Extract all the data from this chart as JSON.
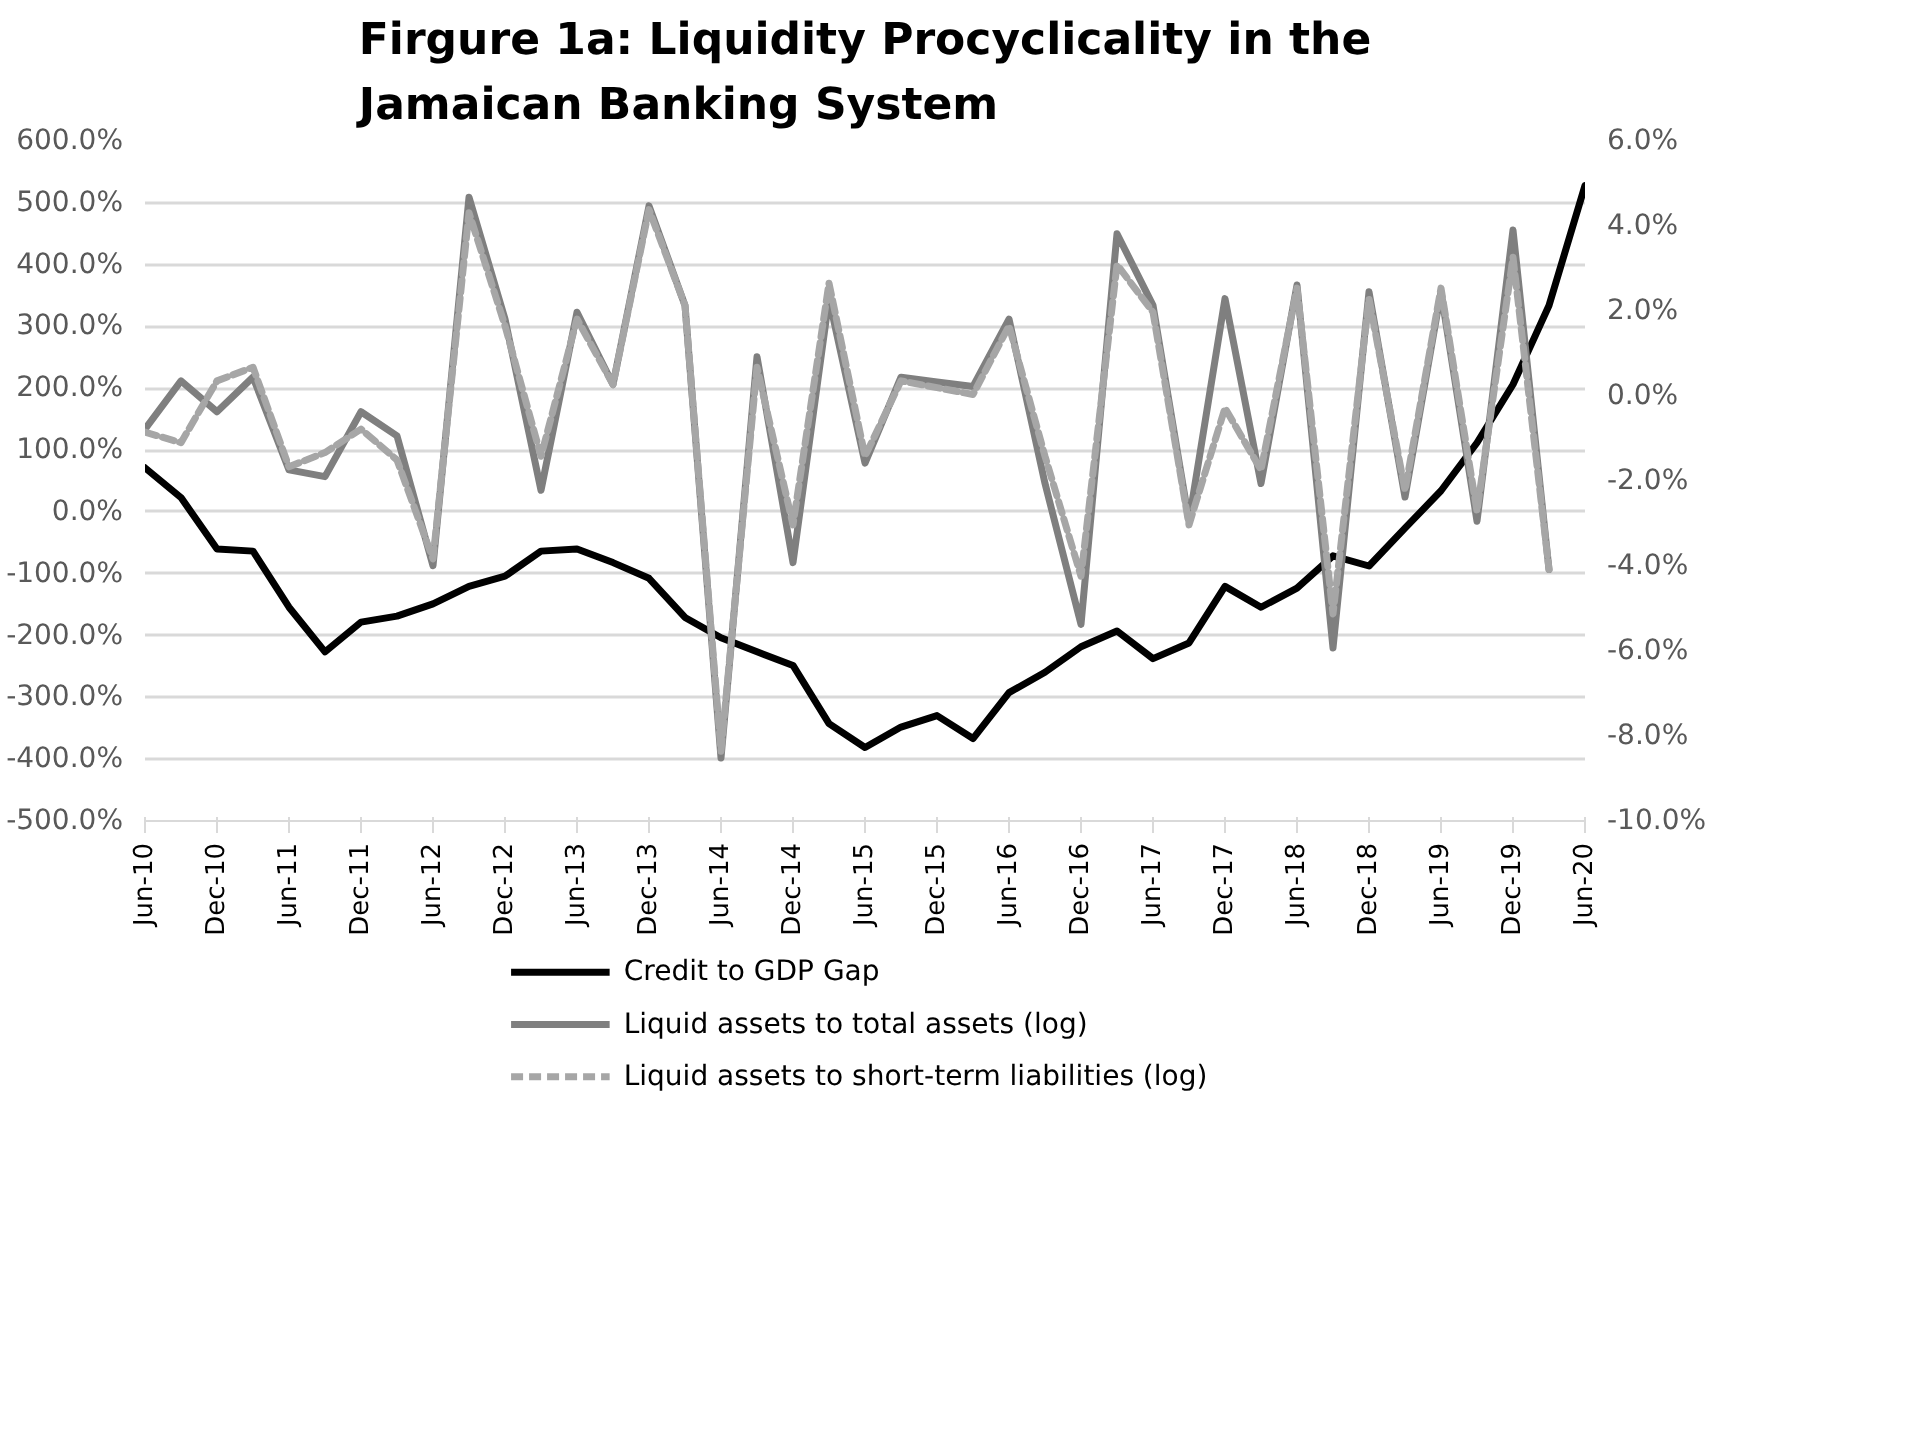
{
  "chart_data": {
    "type": "line",
    "title": "Firgure 1a: Liquidity Procyclicality in the Jamaican Banking System",
    "categories": [
      "Jun-10",
      null,
      "Dec-10",
      null,
      "Jun-11",
      null,
      "Dec-11",
      null,
      "Jun-12",
      null,
      "Dec-12",
      null,
      "Jun-13",
      null,
      "Dec-13",
      null,
      "Jun-14",
      null,
      "Dec-14",
      null,
      "Jun-15",
      null,
      "Dec-15",
      null,
      "Jun-16",
      null,
      "Dec-16",
      null,
      "Jun-17",
      null,
      "Dec-17",
      null,
      "Jun-18",
      null,
      "Dec-18",
      null,
      "Jun-19",
      null,
      "Dec-19",
      null,
      "Jun-20"
    ],
    "series": [
      {
        "name": "Credit to GDP Gap",
        "color": "#000000",
        "axis": "y2",
        "line_style": "solid",
        "values": [
          -1.69,
          -2.39,
          -3.6,
          -3.65,
          -4.97,
          -6.02,
          -5.32,
          -5.18,
          -4.89,
          -4.48,
          -4.24,
          -3.65,
          -3.6,
          -3.92,
          -4.29,
          -5.21,
          -5.69,
          -6.02,
          -6.34,
          -7.71,
          -8.27,
          -7.79,
          -7.52,
          -8.06,
          -6.98,
          -6.5,
          -5.9,
          -5.53,
          -6.18,
          -5.81,
          -4.48,
          -4.97,
          -4.52,
          -3.76,
          -4.0,
          -3.11,
          -2.23,
          -1.1,
          0.27,
          2.13,
          4.95
        ]
      },
      {
        "name": "Liquid assets to total assets (log)",
        "color": "#7f7f7f",
        "line_style": "solid",
        "values": [
          134,
          212,
          162,
          218,
          68,
          57,
          162,
          123,
          -87,
          509,
          312,
          35,
          323,
          206,
          495,
          334,
          -398,
          251,
          -82,
          345,
          79,
          218,
          210,
          203,
          312,
          46,
          -182,
          450,
          334,
          -15,
          345,
          46,
          367,
          -220,
          356,
          24,
          356,
          -15,
          456,
          -93,
          null
        ]
      },
      {
        "name": "Liquid assets to short-term liabilities (log)",
        "color": "#a6a6a6",
        "line_style": "dashed",
        "values": [
          129,
          112,
          212,
          234,
          73,
          96,
          134,
          84,
          -76,
          484,
          301,
          90,
          312,
          206,
          489,
          334,
          -387,
          234,
          -21,
          370,
          90,
          212,
          201,
          190,
          301,
          90,
          -104,
          400,
          323,
          -21,
          168,
          68,
          362,
          -165,
          345,
          35,
          362,
          1,
          412,
          -93,
          null
        ]
      }
    ],
    "ylim": [
      -500,
      600
    ],
    "yticks": [
      {
        "value": -500,
        "label": "-500.0%"
      },
      {
        "value": -400,
        "label": "-400.0%"
      },
      {
        "value": -300,
        "label": "-300.0%"
      },
      {
        "value": -200,
        "label": "-200.0%"
      },
      {
        "value": -100,
        "label": "-100.0%"
      },
      {
        "value": 0,
        "label": "0.0%"
      },
      {
        "value": 100,
        "label": "100.0%"
      },
      {
        "value": 200,
        "label": "200.0%"
      },
      {
        "value": 300,
        "label": "300.0%"
      },
      {
        "value": 400,
        "label": "400.0%"
      },
      {
        "value": 500,
        "label": "500.0%"
      },
      {
        "value": 600,
        "label": "600.0%"
      }
    ],
    "y2lim": [
      -10,
      6
    ],
    "y2ticks": [
      {
        "value": -10,
        "label": "-10.0%"
      },
      {
        "value": -8,
        "label": "-8.0%"
      },
      {
        "value": -6,
        "label": "-6.0%"
      },
      {
        "value": -4,
        "label": "-4.0%"
      },
      {
        "value": -2,
        "label": "-2.0%"
      },
      {
        "value": 0,
        "label": "0.0%"
      },
      {
        "value": 2,
        "label": "2.0%"
      },
      {
        "value": 4,
        "label": "4.0%"
      },
      {
        "value": 6,
        "label": "6.0%"
      }
    ],
    "grid": "y",
    "legend": "bottom",
    "marker": "none"
  }
}
